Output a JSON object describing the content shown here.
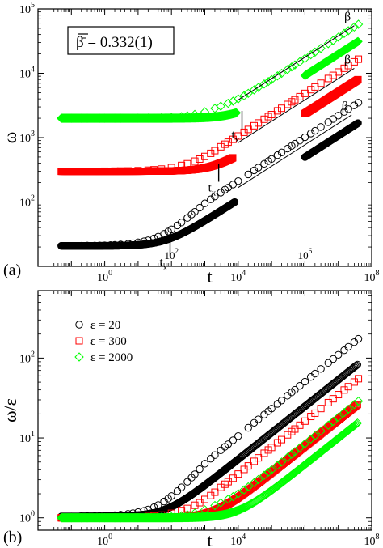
{
  "figure": {
    "panel_a_label": "(a)",
    "panel_b_label": "(b)",
    "beta_box": "β̄ = 0.332(1)"
  },
  "colors": {
    "eps20": "#000000",
    "eps300": "#ff0000",
    "eps2000": "#00ff00"
  },
  "chart_data": [
    {
      "type": "scatter",
      "panel": "a",
      "xlabel": "t",
      "ylabel": "ω",
      "x_scale": "log",
      "y_scale": "log",
      "xlim": [
        0.01,
        100000000
      ],
      "ylim": [
        10,
        100000
      ],
      "xticks": [
        1,
        10000,
        100000000
      ],
      "xtick_labels": [
        "10^0",
        "10^4",
        "10^8"
      ],
      "xtick_labels_inner": [
        "10^2",
        "10^6"
      ],
      "yticks": [
        100,
        1000,
        10000,
        100000
      ],
      "ytick_labels": [
        "10^2",
        "10^3",
        "10^4",
        "10^5"
      ],
      "annotations": [
        "t_x",
        "t_x",
        "t_x",
        "β",
        "β",
        "β"
      ],
      "series": [
        {
          "key": "eps20",
          "marker": "circle",
          "color": "#000000",
          "plateau": 20.8,
          "tx": 70,
          "beta": 0.332,
          "points_t": [
            0.05,
            0.1,
            0.2,
            0.3,
            0.5,
            0.7,
            1,
            1.5,
            2,
            3,
            5,
            7,
            10,
            15,
            20,
            30,
            40,
            60,
            80,
            100,
            150,
            200,
            300,
            400,
            500,
            700,
            1000,
            1500,
            2000,
            3000,
            4000,
            5000,
            7000,
            10000,
            20000,
            30000,
            40000,
            60000,
            80000,
            100000,
            150000,
            200000,
            300000,
            400000,
            500000,
            700000,
            1000000,
            1500000,
            2000000,
            3000000,
            5000000,
            7000000,
            10000000,
            15000000,
            20000000,
            30000000,
            40000000
          ],
          "points_w": [
            20.8,
            20.8,
            20.9,
            21,
            21,
            21.1,
            21.2,
            21.4,
            21.6,
            21.9,
            22.4,
            22.9,
            23.6,
            24.5,
            25.4,
            27.2,
            28.9,
            32,
            34.8,
            37.5,
            43.2,
            48.1,
            56.5,
            63.7,
            70.2,
            81.5,
            95.2,
            110,
            122,
            140,
            155,
            167,
            187,
            211,
            268,
            310,
            342,
            392,
            432,
            466,
            535,
            589,
            676,
            745,
            802,
            898,
            1013,
            1160,
            1277,
            1462,
            1740,
            1949,
            2200,
            2510,
            2770,
            3170,
            3490
          ]
        },
        {
          "key": "eps300",
          "marker": "square",
          "color": "#ff0000",
          "plateau": 300,
          "tx": 2000,
          "beta": 0.332,
          "points_t": [
            0.05,
            0.1,
            0.2,
            0.3,
            0.5,
            0.7,
            1,
            2,
            3,
            5,
            10,
            20,
            30,
            50,
            100,
            200,
            300,
            500,
            700,
            1000,
            1500,
            2000,
            3000,
            4000,
            5000,
            7000,
            10000,
            15000,
            20000,
            30000,
            40000,
            60000,
            80000,
            100000,
            150000,
            200000,
            300000,
            400000,
            500000,
            700000,
            1000000,
            1500000,
            2000000,
            3000000,
            5000000,
            7000000,
            10000000,
            15000000,
            20000000,
            30000000,
            40000000
          ],
          "points_w": [
            300,
            300,
            300,
            300,
            300,
            300,
            301,
            302,
            303,
            304,
            307,
            312,
            317,
            325,
            342,
            370,
            393,
            431,
            464,
            510,
            570,
            628,
            720,
            790,
            850,
            940,
            1060,
            1210,
            1340,
            1530,
            1690,
            1930,
            2120,
            2280,
            2610,
            2860,
            3280,
            3600,
            3880,
            4330,
            4870,
            5570,
            6130,
            7010,
            8300,
            9280,
            10460,
            11950,
            13160,
            15050,
            16560
          ]
        },
        {
          "key": "eps2000",
          "marker": "diamond",
          "color": "#00ff00",
          "plateau": 2000,
          "tx": 10000,
          "beta": 0.332,
          "points_t": [
            0.05,
            0.1,
            0.2,
            0.3,
            0.5,
            0.7,
            1,
            2,
            3,
            5,
            10,
            20,
            30,
            50,
            100,
            200,
            300,
            500,
            1000,
            2000,
            3000,
            5000,
            7000,
            10000,
            15000,
            20000,
            30000,
            40000,
            60000,
            80000,
            100000,
            150000,
            200000,
            300000,
            400000,
            500000,
            700000,
            1000000,
            1500000,
            2000000,
            3000000,
            5000000,
            7000000,
            10000000,
            15000000,
            20000000,
            30000000,
            40000000
          ],
          "points_w": [
            2000,
            2000,
            2000,
            2000,
            2000,
            2000,
            2000,
            2001,
            2002,
            2003,
            2006,
            2012,
            2018,
            2030,
            2060,
            2120,
            2180,
            2290,
            2520,
            2850,
            3080,
            3420,
            3680,
            4000,
            4480,
            4880,
            5520,
            6020,
            6810,
            7440,
            7970,
            9100,
            9980,
            11420,
            12550,
            13490,
            15050,
            16940,
            19380,
            21310,
            24380,
            28870,
            32300,
            36390,
            41630,
            45800,
            52410,
            57650
          ]
        }
      ]
    },
    {
      "type": "scatter",
      "panel": "b",
      "xlabel": "t",
      "ylabel": "ω/ε",
      "x_scale": "log",
      "y_scale": "log",
      "xlim": [
        0.01,
        100000000
      ],
      "ylim": [
        0.7,
        700
      ],
      "xticks": [
        1,
        10000,
        100000000
      ],
      "xtick_labels": [
        "10^0",
        "10^4",
        "10^8"
      ],
      "yticks": [
        1,
        10,
        100
      ],
      "ytick_labels": [
        "10^0",
        "10^1",
        "10^2"
      ],
      "legend_position": "top-left",
      "legend": [
        {
          "key": "eps20",
          "label": "ε = 20",
          "marker": "circle"
        },
        {
          "key": "eps300",
          "label": "ε = 300",
          "marker": "square"
        },
        {
          "key": "eps2000",
          "label": "ε = 2000",
          "marker": "diamond"
        }
      ],
      "series": [
        {
          "key": "eps20",
          "eps": 20,
          "plateau": 1.04
        },
        {
          "key": "eps300",
          "eps": 300,
          "plateau": 1.0
        },
        {
          "key": "eps2000",
          "eps": 2000,
          "plateau": 1.0
        }
      ]
    }
  ]
}
